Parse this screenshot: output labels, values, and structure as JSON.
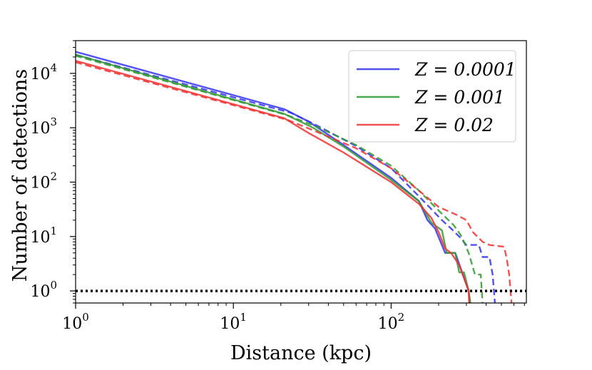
{
  "chart_data": {
    "type": "line",
    "title": "",
    "xlabel": "Distance (kpc)",
    "ylabel": "Number of detections",
    "xscale": "log",
    "yscale": "log",
    "xlim": [
      1,
      720
    ],
    "ylim": [
      0.6,
      40000
    ],
    "xticks": [
      {
        "value": 1,
        "label": "10^0"
      },
      {
        "value": 10,
        "label": "10^1"
      },
      {
        "value": 100,
        "label": "10^2"
      }
    ],
    "yticks": [
      {
        "value": 1,
        "label": "10^0"
      },
      {
        "value": 10,
        "label": "10^1"
      },
      {
        "value": 100,
        "label": "10^2"
      },
      {
        "value": 1000,
        "label": "10^3"
      },
      {
        "value": 10000,
        "label": "10^4"
      }
    ],
    "legend": {
      "position": "top-right",
      "entries": [
        {
          "label": "Z = 0.0001",
          "color": "#3333ee"
        },
        {
          "label": "Z = 0.001",
          "color": "#339933"
        },
        {
          "label": "Z = 0.02",
          "color": "#ee3333"
        }
      ]
    },
    "reference_line": {
      "y": 1,
      "style": "dotted",
      "color": "#000000"
    },
    "series": [
      {
        "name": "Z = 0.0001 (solid)",
        "color": "#3333ee",
        "style": "solid",
        "points": [
          [
            1,
            25000
          ],
          [
            21,
            2200
          ],
          [
            30,
            1300
          ],
          [
            50,
            480
          ],
          [
            100,
            120
          ],
          [
            150,
            45
          ],
          [
            170,
            20
          ],
          [
            190,
            14
          ],
          [
            220,
            5
          ],
          [
            255,
            5
          ],
          [
            285,
            2
          ],
          [
            310,
            1
          ],
          [
            315,
            0.6
          ]
        ]
      },
      {
        "name": "Z = 0.0001 (dashed)",
        "color": "#3333ee",
        "style": "dashed",
        "points": [
          [
            1,
            22000
          ],
          [
            23,
            1900
          ],
          [
            32,
            1200
          ],
          [
            60,
            460
          ],
          [
            100,
            180
          ],
          [
            150,
            55
          ],
          [
            210,
            20
          ],
          [
            240,
            14
          ],
          [
            270,
            10
          ],
          [
            300,
            7
          ],
          [
            360,
            7
          ],
          [
            380,
            4.2
          ],
          [
            420,
            4.2
          ],
          [
            440,
            2
          ],
          [
            455,
            0.6
          ]
        ]
      },
      {
        "name": "Z = 0.001 (solid)",
        "color": "#339933",
        "style": "solid",
        "points": [
          [
            1,
            22000
          ],
          [
            21,
            1800
          ],
          [
            32,
            1000
          ],
          [
            50,
            450
          ],
          [
            100,
            110
          ],
          [
            150,
            45
          ],
          [
            180,
            18
          ],
          [
            210,
            13
          ],
          [
            225,
            5
          ],
          [
            255,
            5
          ],
          [
            270,
            2.2
          ],
          [
            290,
            2.2
          ],
          [
            310,
            1
          ],
          [
            318,
            0.6
          ]
        ]
      },
      {
        "name": "Z = 0.001 (dashed)",
        "color": "#339933",
        "style": "dashed",
        "points": [
          [
            1,
            21000
          ],
          [
            22,
            1700
          ],
          [
            35,
            1000
          ],
          [
            60,
            480
          ],
          [
            100,
            200
          ],
          [
            150,
            70
          ],
          [
            200,
            30
          ],
          [
            250,
            16
          ],
          [
            280,
            10
          ],
          [
            310,
            5
          ],
          [
            340,
            2
          ],
          [
            370,
            2
          ],
          [
            380,
            0.6
          ]
        ]
      },
      {
        "name": "Z = 0.02 (solid)",
        "color": "#ee3333",
        "style": "solid",
        "points": [
          [
            1,
            17000
          ],
          [
            21,
            1500
          ],
          [
            30,
            800
          ],
          [
            50,
            350
          ],
          [
            100,
            100
          ],
          [
            150,
            40
          ],
          [
            180,
            22
          ],
          [
            200,
            12
          ],
          [
            220,
            6
          ],
          [
            240,
            5
          ],
          [
            270,
            3
          ],
          [
            310,
            1
          ],
          [
            312,
            0.6
          ]
        ]
      },
      {
        "name": "Z = 0.02 (dashed)",
        "color": "#ee3333",
        "style": "dashed",
        "points": [
          [
            1,
            16000
          ],
          [
            22,
            1400
          ],
          [
            32,
            900
          ],
          [
            60,
            420
          ],
          [
            100,
            180
          ],
          [
            150,
            70
          ],
          [
            200,
            35
          ],
          [
            260,
            25
          ],
          [
            300,
            20
          ],
          [
            330,
            12
          ],
          [
            380,
            8
          ],
          [
            420,
            7
          ],
          [
            520,
            6.5
          ],
          [
            540,
            4
          ],
          [
            560,
            2
          ],
          [
            580,
            0.6
          ]
        ]
      }
    ]
  }
}
